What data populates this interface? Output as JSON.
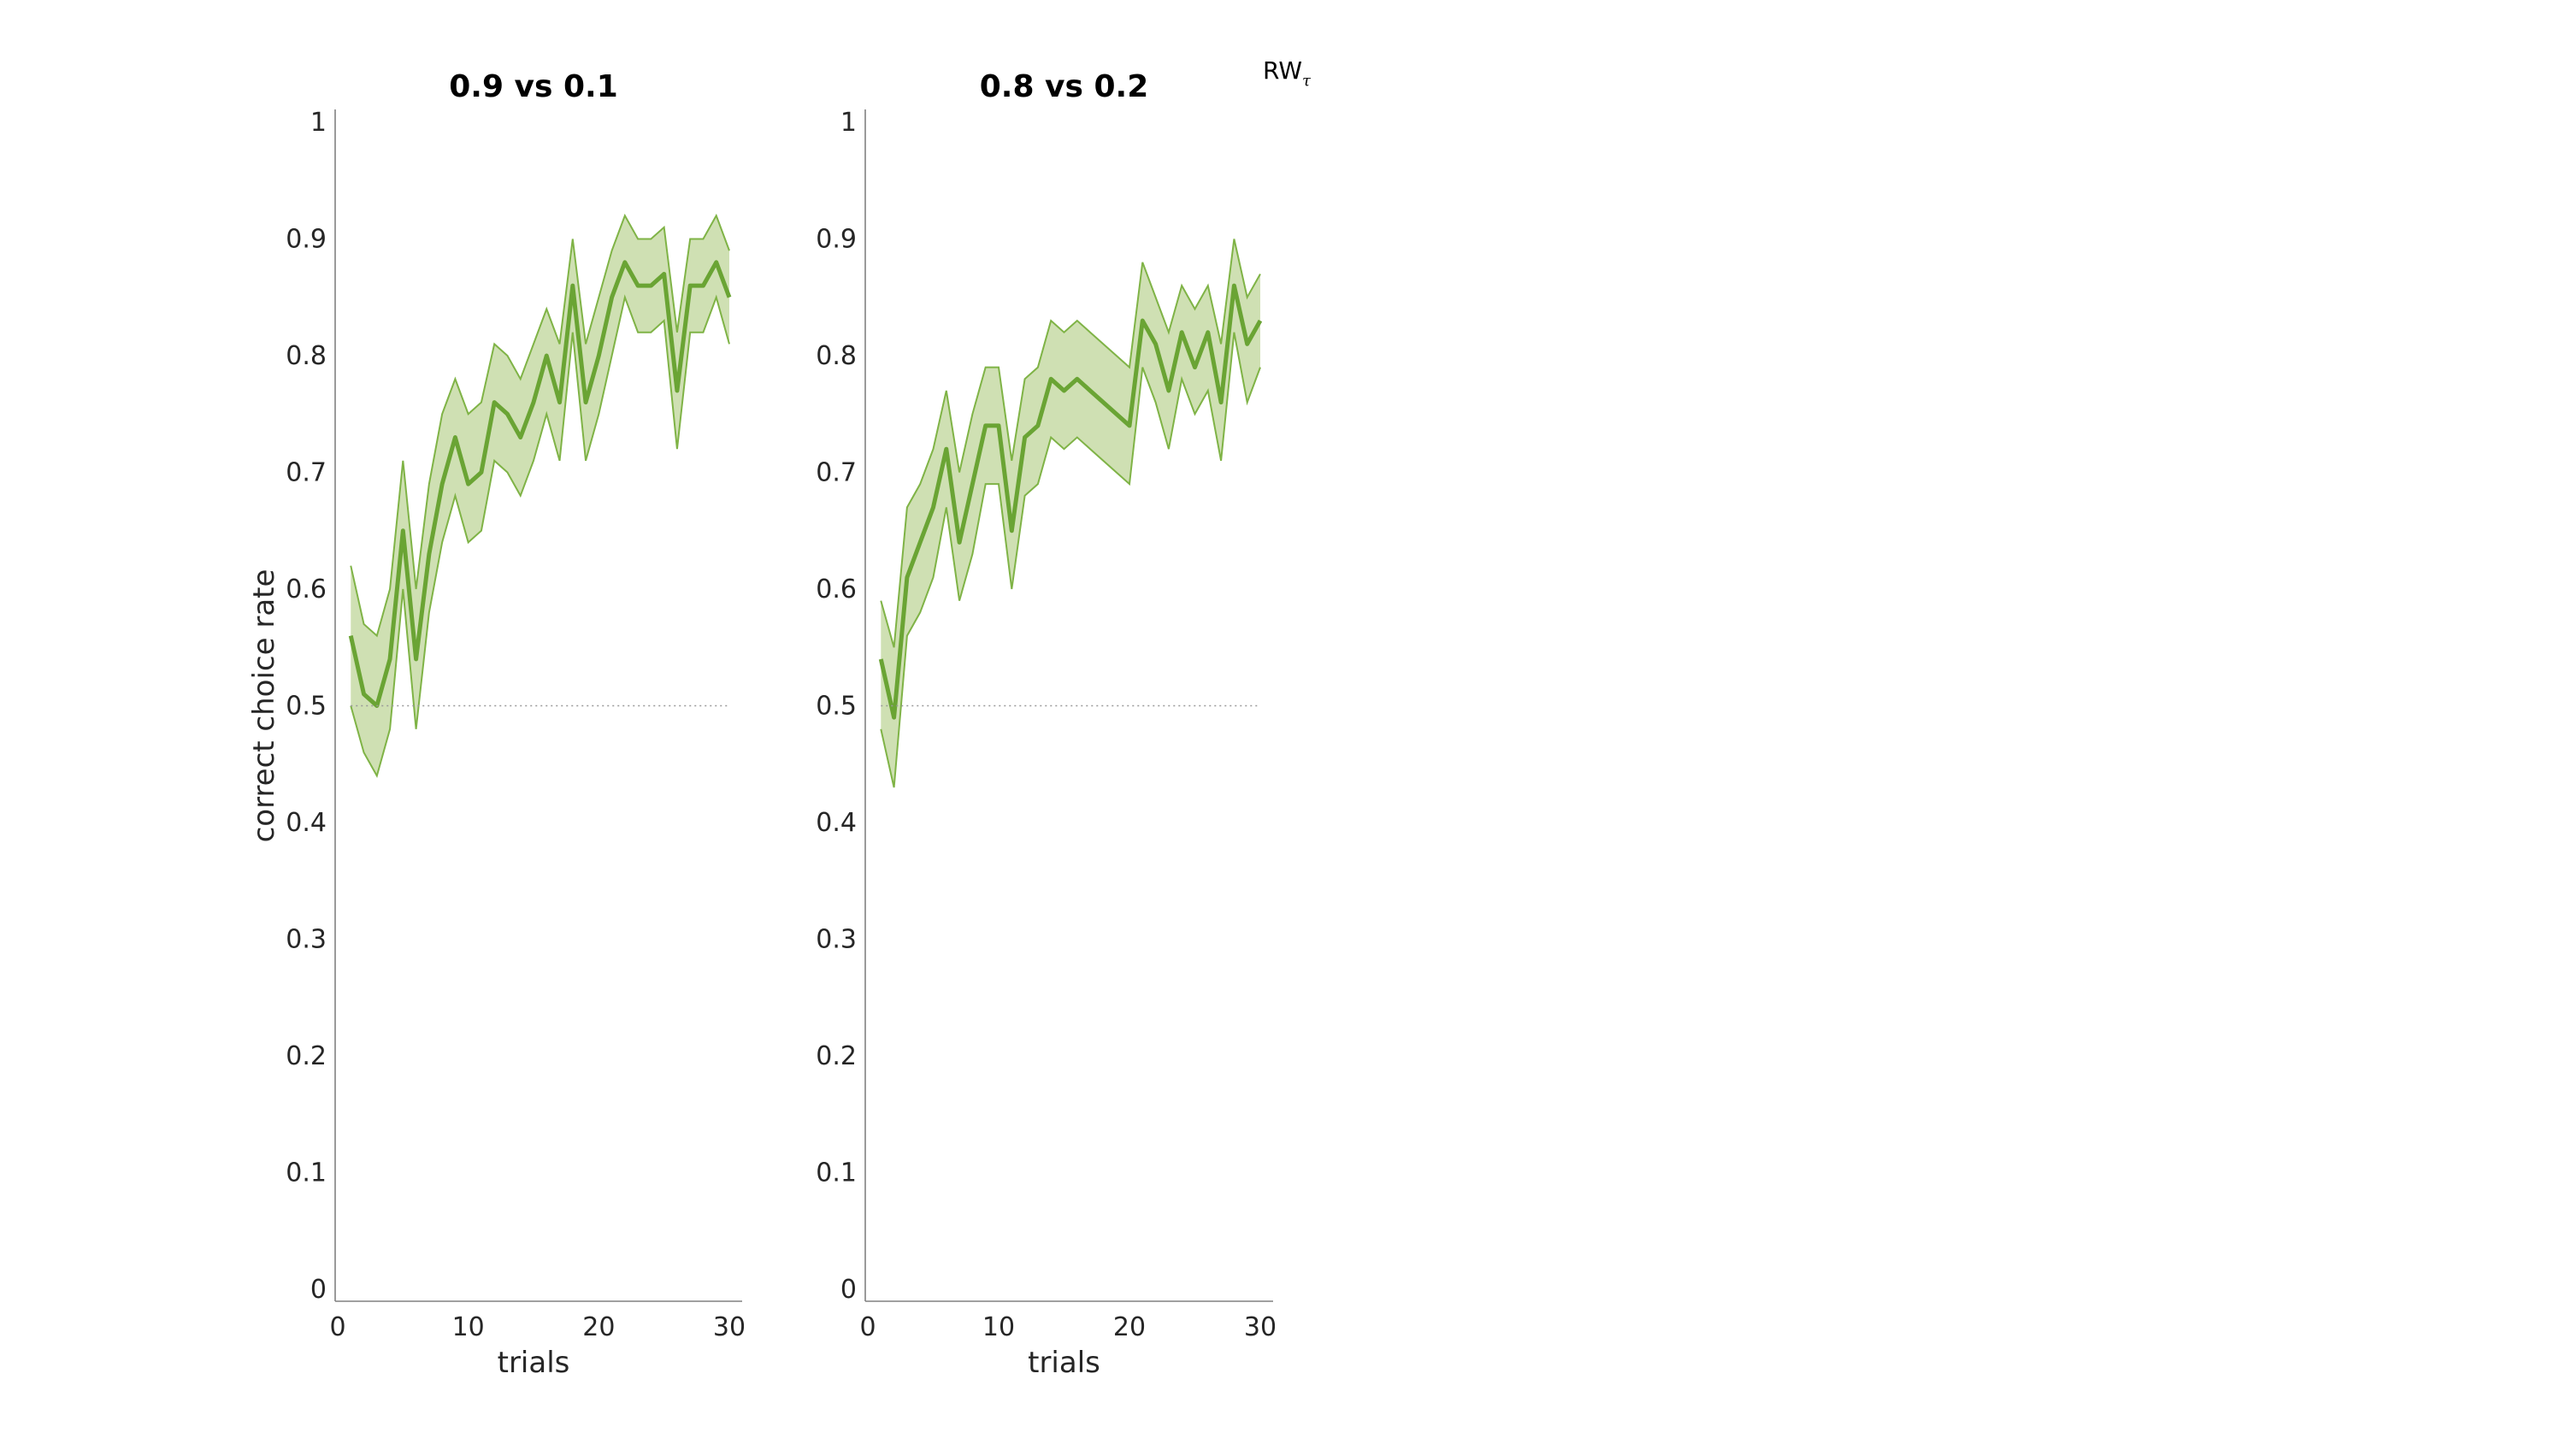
{
  "legend": {
    "text": "RW",
    "subscript": "τ"
  },
  "colors": {
    "line": "#6aa434",
    "band_fill": "#cfe0b3",
    "band_edge": "#7fb346",
    "chance_line": "#999999"
  },
  "chart_data": [
    {
      "type": "line",
      "title": "0.9 vs 0.1",
      "xlabel": "trials",
      "ylabel": "correct choice rate",
      "xlim": [
        0,
        30
      ],
      "ylim": [
        0,
        1
      ],
      "xticks": [
        "0",
        "10",
        "20",
        "30"
      ],
      "yticks": [
        "0",
        "0.1",
        "0.2",
        "0.3",
        "0.4",
        "0.5",
        "0.6",
        "0.7",
        "0.8",
        "0.9",
        "1"
      ],
      "reference_line": 0.5,
      "grid": false,
      "x": [
        1,
        2,
        3,
        4,
        5,
        6,
        7,
        8,
        9,
        10,
        11,
        12,
        13,
        14,
        15,
        16,
        17,
        18,
        19,
        20,
        21,
        22,
        23,
        24,
        25,
        26,
        27,
        28,
        29,
        30
      ],
      "series": [
        {
          "values": [
            0.56,
            0.51,
            0.5,
            0.54,
            0.65,
            0.54,
            0.63,
            0.69,
            0.73,
            0.69,
            0.7,
            0.76,
            0.75,
            0.73,
            0.76,
            0.8,
            0.76,
            0.86,
            0.76,
            0.8,
            0.85,
            0.88,
            0.86,
            0.86,
            0.87,
            0.77,
            0.86,
            0.86,
            0.88,
            0.85
          ],
          "upper": [
            0.62,
            0.57,
            0.56,
            0.6,
            0.71,
            0.6,
            0.69,
            0.75,
            0.78,
            0.75,
            0.76,
            0.81,
            0.8,
            0.78,
            0.81,
            0.84,
            0.81,
            0.9,
            0.81,
            0.85,
            0.89,
            0.92,
            0.9,
            0.9,
            0.91,
            0.82,
            0.9,
            0.9,
            0.92,
            0.89
          ],
          "lower": [
            0.5,
            0.46,
            0.44,
            0.48,
            0.6,
            0.48,
            0.58,
            0.64,
            0.68,
            0.64,
            0.65,
            0.71,
            0.7,
            0.68,
            0.71,
            0.75,
            0.71,
            0.82,
            0.71,
            0.75,
            0.8,
            0.85,
            0.82,
            0.82,
            0.83,
            0.72,
            0.82,
            0.82,
            0.85,
            0.81
          ]
        }
      ]
    },
    {
      "type": "line",
      "title": "0.8 vs 0.2",
      "xlabel": "trials",
      "ylabel": "",
      "xlim": [
        0,
        30
      ],
      "ylim": [
        0,
        1
      ],
      "xticks": [
        "0",
        "10",
        "20",
        "30"
      ],
      "yticks": [
        "0",
        "0.1",
        "0.2",
        "0.3",
        "0.4",
        "0.5",
        "0.6",
        "0.7",
        "0.8",
        "0.9",
        "1"
      ],
      "reference_line": 0.5,
      "grid": false,
      "x": [
        1,
        2,
        3,
        4,
        5,
        6,
        7,
        8,
        9,
        10,
        11,
        12,
        13,
        14,
        15,
        16,
        17,
        18,
        19,
        20,
        21,
        22,
        23,
        24,
        25,
        26,
        27,
        28,
        29,
        30
      ],
      "series": [
        {
          "values": [
            0.54,
            0.49,
            0.61,
            0.64,
            0.67,
            0.72,
            0.64,
            0.69,
            0.74,
            0.74,
            0.65,
            0.73,
            0.74,
            0.78,
            0.77,
            0.78,
            0.77,
            0.76,
            0.75,
            0.74,
            0.83,
            0.81,
            0.77,
            0.82,
            0.79,
            0.82,
            0.76,
            0.86,
            0.81,
            0.83
          ],
          "upper": [
            0.59,
            0.55,
            0.67,
            0.69,
            0.72,
            0.77,
            0.7,
            0.75,
            0.79,
            0.79,
            0.71,
            0.78,
            0.79,
            0.83,
            0.82,
            0.83,
            0.82,
            0.81,
            0.8,
            0.79,
            0.88,
            0.85,
            0.82,
            0.86,
            0.84,
            0.86,
            0.81,
            0.9,
            0.85,
            0.87
          ],
          "lower": [
            0.48,
            0.43,
            0.56,
            0.58,
            0.61,
            0.67,
            0.59,
            0.63,
            0.69,
            0.69,
            0.6,
            0.68,
            0.69,
            0.73,
            0.72,
            0.73,
            0.72,
            0.71,
            0.7,
            0.69,
            0.79,
            0.76,
            0.72,
            0.78,
            0.75,
            0.77,
            0.71,
            0.82,
            0.76,
            0.79
          ]
        }
      ]
    }
  ]
}
